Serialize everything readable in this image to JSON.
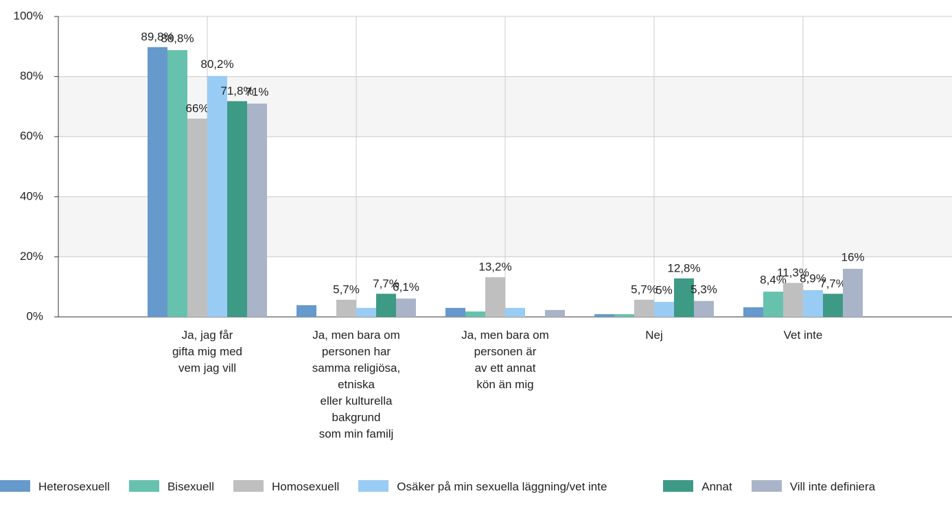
{
  "chart_data": {
    "type": "bar",
    "categories": [
      "Ja, jag får\ngifta mig med\nvem jag vill",
      "Ja, men bara om\npersonen har\nsamma religiösa,\netniska\neller kulturella\nbakgrund\nsom min familj",
      "Ja, men bara om\npersonen är\nav ett annat\nkön än mig",
      "Nej",
      "Vet inte"
    ],
    "series": [
      {
        "name": "Heterosexuell",
        "color": "#6699cc",
        "values": [
          89.8,
          3.9,
          3,
          0.9,
          3.2
        ],
        "value_labels": [
          "89,8%",
          null,
          null,
          null,
          null
        ]
      },
      {
        "name": "Bisexuell",
        "color": "#66c2ad",
        "values": [
          88.8,
          0,
          1.8,
          0.9,
          8.4
        ],
        "value_labels": [
          "88,8%",
          null,
          null,
          null,
          "8,4%"
        ]
      },
      {
        "name": "Homosexuell",
        "color": "#bfbfbf",
        "values": [
          66,
          5.7,
          13.2,
          5.7,
          11.3
        ],
        "value_labels": [
          "66%",
          "5,7%",
          "13,2%",
          "5,7%",
          "11,3%"
        ]
      },
      {
        "name": "Osäker på min sexuella läggning/vet inte",
        "color": "#99ccf5",
        "values": [
          80.2,
          3,
          3,
          5,
          8.9
        ],
        "value_labels": [
          "80,2%",
          null,
          null,
          "5%",
          "8,9%"
        ]
      },
      {
        "name": "Annat",
        "color": "#3d9a85",
        "values": [
          71.8,
          7.7,
          0,
          12.8,
          7.7
        ],
        "value_labels": [
          "71,8%",
          "7,7%",
          null,
          "12,8%",
          "7,7%"
        ]
      },
      {
        "name": "Vill inte definiera",
        "color": "#aab4c8",
        "values": [
          71,
          6.1,
          2.3,
          5.3,
          16
        ],
        "value_labels": [
          "71%",
          "6,1%",
          null,
          "5,3%",
          "16%"
        ]
      }
    ],
    "ylim": [
      0,
      100
    ],
    "yticks": [
      {
        "value": 0,
        "label": "0%"
      },
      {
        "value": 20,
        "label": "20%"
      },
      {
        "value": 40,
        "label": "40%"
      },
      {
        "value": 60,
        "label": "60%"
      },
      {
        "value": 80,
        "label": "80%"
      },
      {
        "value": 100,
        "label": "100%"
      }
    ],
    "grid": true,
    "legend": "bottom"
  }
}
